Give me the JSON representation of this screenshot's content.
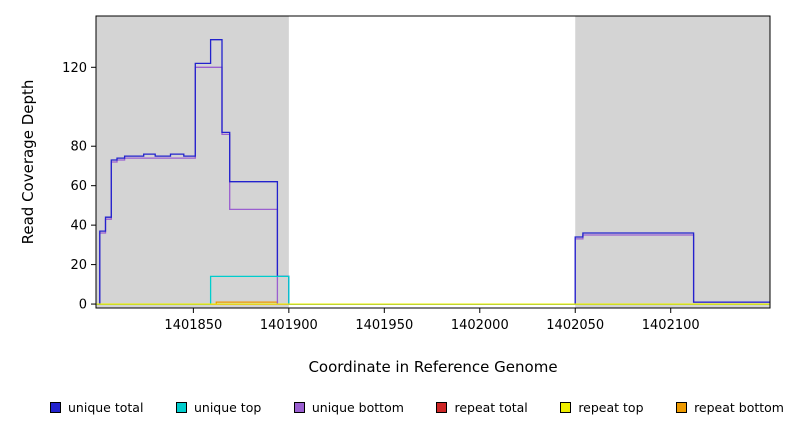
{
  "chart_data": {
    "type": "line",
    "subtype": "step",
    "title": "",
    "xlabel": "Coordinate in Reference Genome",
    "ylabel": "Read Coverage Depth",
    "xlim": [
      1401799,
      1402152
    ],
    "ylim": [
      -2,
      146
    ],
    "xticks": [
      1401850,
      1401900,
      1401950,
      1402000,
      1402050,
      1402100
    ],
    "yticks": [
      0,
      20,
      40,
      60,
      80,
      120
    ],
    "grid": false,
    "legend_position": "bottom",
    "shade_color": "#D4D4D4",
    "shaded_regions": [
      {
        "x0": 1401799,
        "x1": 1401900
      },
      {
        "x0": 1402050,
        "x1": 1402152
      }
    ],
    "series": [
      {
        "name": "unique total",
        "color": "#2222CD",
        "points": [
          [
            1401799,
            0
          ],
          [
            1401801,
            37
          ],
          [
            1401804,
            44
          ],
          [
            1401807,
            73
          ],
          [
            1401810,
            74
          ],
          [
            1401814,
            75
          ],
          [
            1401824,
            76
          ],
          [
            1401830,
            75
          ],
          [
            1401838,
            76
          ],
          [
            1401845,
            75
          ],
          [
            1401851,
            122
          ],
          [
            1401859,
            134
          ],
          [
            1401865,
            87
          ],
          [
            1401869,
            62
          ],
          [
            1401894,
            14
          ],
          [
            1401900,
            0
          ],
          [
            1402050,
            34
          ],
          [
            1402054,
            36
          ],
          [
            1402112,
            1
          ]
        ]
      },
      {
        "name": "unique top",
        "color": "#00CDCD",
        "points": [
          [
            1401799,
            0
          ],
          [
            1401859,
            14
          ],
          [
            1401900,
            0
          ]
        ]
      },
      {
        "name": "unique bottom",
        "color": "#9A5FD0",
        "points": [
          [
            1401799,
            0
          ],
          [
            1401801,
            36
          ],
          [
            1401804,
            43
          ],
          [
            1401807,
            72
          ],
          [
            1401810,
            73
          ],
          [
            1401814,
            74
          ],
          [
            1401845,
            74
          ],
          [
            1401851,
            120
          ],
          [
            1401865,
            86
          ],
          [
            1401869,
            48
          ],
          [
            1401894,
            0
          ],
          [
            1402050,
            33
          ],
          [
            1402054,
            35
          ],
          [
            1402112,
            1
          ]
        ]
      },
      {
        "name": "repeat total",
        "color": "#CD2626",
        "points": [
          [
            1401799,
            0
          ]
        ]
      },
      {
        "name": "repeat top",
        "color": "#EEEE00",
        "points": [
          [
            1401799,
            0
          ]
        ]
      },
      {
        "name": "repeat bottom",
        "color": "#EE9A00",
        "points": [
          [
            1401799,
            0
          ],
          [
            1401862,
            1
          ],
          [
            1401894,
            0
          ]
        ]
      }
    ],
    "z_order": [
      3,
      5,
      2,
      0,
      1,
      4
    ]
  }
}
